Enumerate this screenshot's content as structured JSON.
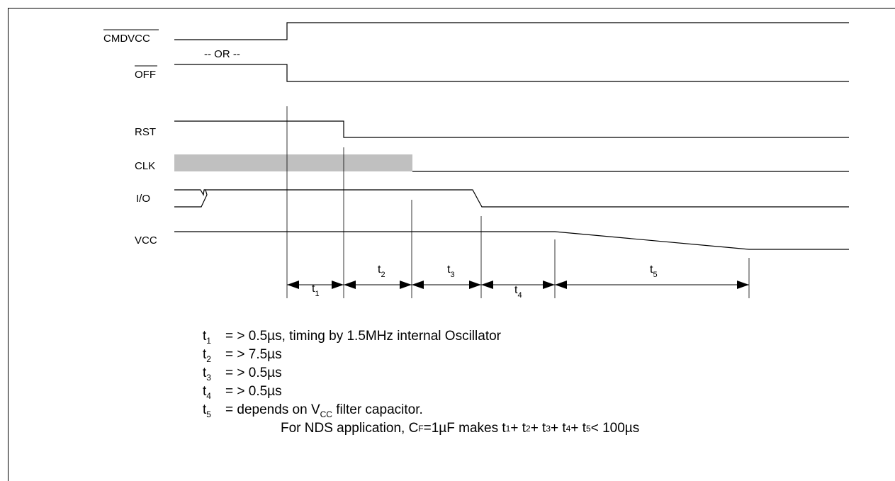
{
  "signals": [
    {
      "id": "cmdvcc",
      "label": "CMDVCC",
      "overline": true
    },
    {
      "id": "off",
      "label": "OFF",
      "overline": true
    },
    {
      "id": "rst",
      "label": "RST",
      "overline": false
    },
    {
      "id": "clk",
      "label": "CLK",
      "overline": false
    },
    {
      "id": "io",
      "label": "I/O",
      "overline": false
    },
    {
      "id": "vcc",
      "label": "VCC",
      "overline": false
    }
  ],
  "or_label": "-- OR --",
  "intervals": [
    {
      "sym": "t",
      "sub": "1"
    },
    {
      "sym": "t",
      "sub": "2"
    },
    {
      "sym": "t",
      "sub": "3"
    },
    {
      "sym": "t",
      "sub": "4"
    },
    {
      "sym": "t",
      "sub": "5"
    }
  ],
  "notes": [
    {
      "sym": "t",
      "sub": "1",
      "text": "= > 0.5µs, timing by 1.5MHz internal Oscillator"
    },
    {
      "sym": "t",
      "sub": "2",
      "text": "= > 7.5µs"
    },
    {
      "sym": "t",
      "sub": "3",
      "text": "= > 0.5µs"
    },
    {
      "sym": "t",
      "sub": "4",
      "text": "= > 0.5µs"
    },
    {
      "sym": "t",
      "sub": "5",
      "text_before": "= depends on V",
      "text_sub": "CC",
      "text_after": " filter capacitor."
    }
  ],
  "note_continuation": {
    "a": "For NDS application, C",
    "a_sub": "F",
    "b": "=1µF makes t",
    "s1": "1",
    "p1": " + t",
    "s2": "2",
    "p2": " + t",
    "s3": "3",
    "p3": " + t",
    "s4": "4",
    "p4": " + t",
    "s5": "5",
    "c": " < 100µs"
  },
  "colors": {
    "line": "#000000",
    "clk_bar": "#c0c0c0",
    "border": "#000000"
  }
}
